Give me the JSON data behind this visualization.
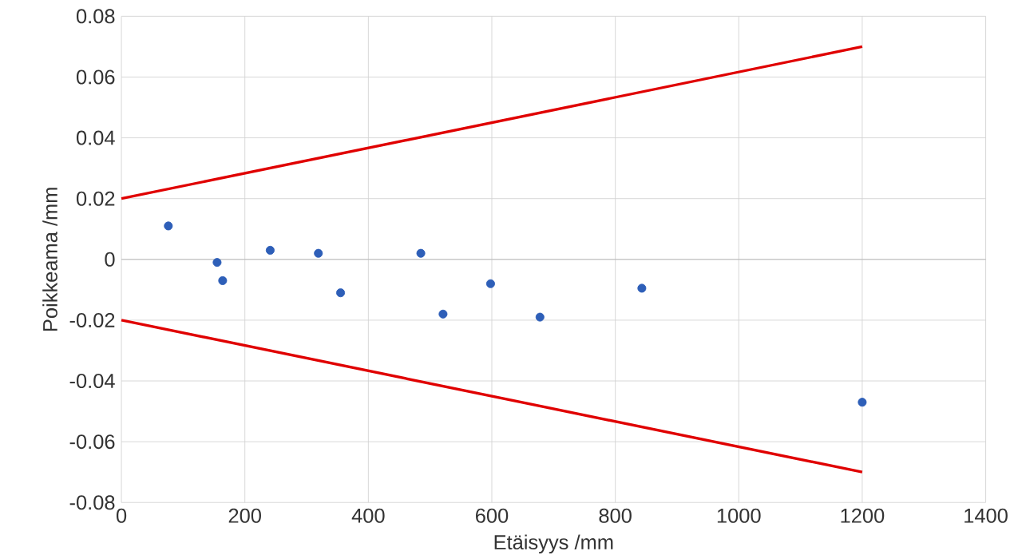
{
  "chart_data": {
    "type": "scatter",
    "xlabel": "Etäisyys /mm",
    "ylabel": "Poikkeama /mm",
    "xlim": [
      0,
      1400
    ],
    "xticks": [
      0,
      200,
      400,
      600,
      800,
      1000,
      1200,
      1400
    ],
    "ylim": [
      -0.08,
      0.08
    ],
    "yticks": [
      -0.08,
      -0.06,
      -0.04,
      -0.02,
      0,
      0.02,
      0.04,
      0.06,
      0.08
    ],
    "grid": true,
    "series": [
      {
        "type": "line",
        "marker": "none",
        "color": "#e00000",
        "x": [
          0,
          1200
        ],
        "values": [
          0.02,
          0.07
        ]
      },
      {
        "type": "line",
        "marker": "none",
        "color": "#e00000",
        "x": [
          0,
          1200
        ],
        "values": [
          -0.02,
          -0.07
        ]
      },
      {
        "marker": "circle",
        "color": "#2e5fb8",
        "x": [
          76,
          155,
          164,
          241,
          319,
          355,
          485,
          521,
          598,
          678,
          843,
          1200
        ],
        "values": [
          0.011,
          -0.001,
          -0.007,
          0.003,
          0.002,
          -0.011,
          0.002,
          -0.018,
          -0.008,
          -0.019,
          -0.0095,
          -0.047
        ]
      }
    ]
  }
}
